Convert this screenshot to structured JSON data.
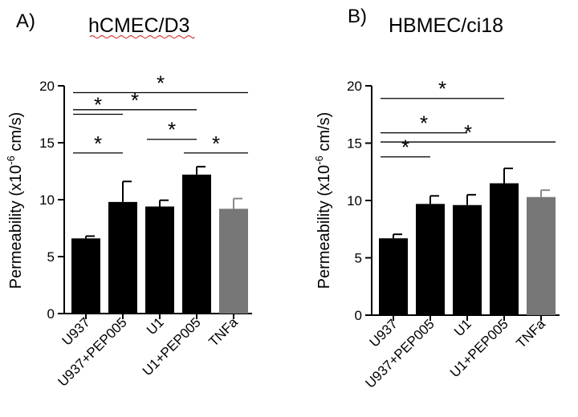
{
  "figure": {
    "panels": [
      {
        "letter": "A)",
        "title": "hCMEC/D3",
        "ylabel_main": "Permeability (x10",
        "ylabel_exp": "-6",
        "ylabel_unit": " cm/s)"
      },
      {
        "letter": "B)",
        "title": "HBMEC/ci18",
        "ylabel_main": "Permeability (x10",
        "ylabel_exp": "-6",
        "ylabel_unit": " cm/s)"
      }
    ]
  },
  "chart_data": [
    {
      "type": "bar",
      "title": "hCMEC/D3",
      "ylabel": "Permeability (x10-6 cm/s)",
      "xlabel": "",
      "categories": [
        "U937",
        "U937+PEP005",
        "U1",
        "U1+PEP005",
        "TNFa"
      ],
      "values": [
        6.6,
        9.8,
        9.4,
        12.2,
        9.2
      ],
      "errors": [
        0.2,
        1.8,
        0.55,
        0.7,
        0.9
      ],
      "colors": [
        "#000000",
        "#000000",
        "#000000",
        "#000000",
        "#777777"
      ],
      "ylim": [
        0,
        20
      ],
      "yticks": [
        0,
        5,
        10,
        15,
        20
      ],
      "grid": false,
      "significance": [
        {
          "from": 0,
          "to": 1,
          "level": 17.5,
          "label": "*"
        },
        {
          "from": 0,
          "to": 4,
          "level": 19.4,
          "label": "*"
        },
        {
          "from": 0,
          "to": 3,
          "level": 17.9,
          "label": "*"
        },
        {
          "from": 2,
          "to": 3,
          "level": 15.3,
          "label": "*"
        },
        {
          "from": 0,
          "to": 1,
          "level": 14.1,
          "label": "*"
        },
        {
          "from": 3,
          "to": 4,
          "level": 14.1,
          "label": "*"
        }
      ]
    },
    {
      "type": "bar",
      "title": "HBMEC/ci18",
      "ylabel": "Permeability (x10-6 cm/s)",
      "xlabel": "",
      "categories": [
        "U937",
        "U937+PEP005",
        "U1",
        "U1+PEP005",
        "TNFa"
      ],
      "values": [
        6.7,
        9.7,
        9.6,
        11.5,
        10.3
      ],
      "errors": [
        0.35,
        0.7,
        0.9,
        1.3,
        0.6
      ],
      "colors": [
        "#000000",
        "#000000",
        "#000000",
        "#000000",
        "#777777"
      ],
      "ylim": [
        0,
        20
      ],
      "yticks": [
        0,
        5,
        10,
        15,
        20
      ],
      "grid": false,
      "significance": [
        {
          "from": 0,
          "to": 3,
          "level": 18.9,
          "label": "*"
        },
        {
          "from": 0,
          "to": 2,
          "level": 15.9,
          "label": "*"
        },
        {
          "from": 0,
          "to": 4,
          "level": 15.1,
          "label": "*"
        },
        {
          "from": 0,
          "to": 1,
          "level": 13.8,
          "label": "*"
        }
      ]
    }
  ]
}
